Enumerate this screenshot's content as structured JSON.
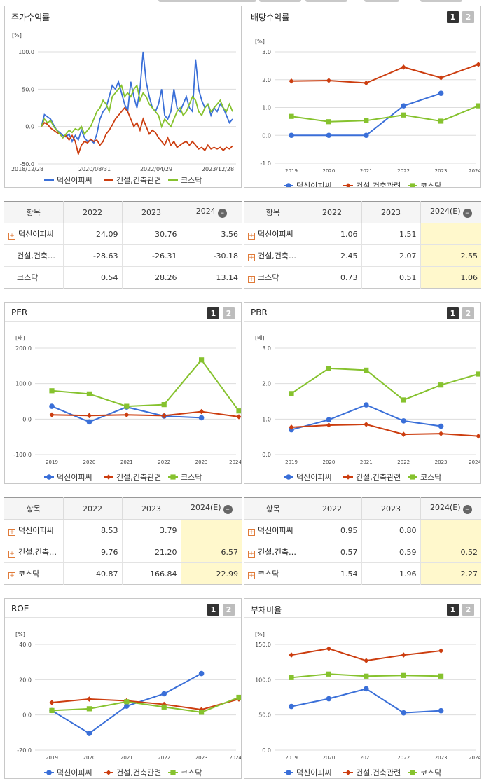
{
  "series_names": [
    "덕신이피씨",
    "건설,건축관련",
    "코스닥"
  ],
  "colors": {
    "s0": "#3a6fd8",
    "s1": "#cc3d0f",
    "s2": "#86c22e",
    "grid": "#dddddd",
    "axis": "#444444",
    "hl": "#fff8cc"
  },
  "panels": {
    "price": {
      "title": "주가수익률",
      "unit": "[%]",
      "y_ticks": [
        "100.0",
        "50.0",
        "0.0",
        "-50.0"
      ],
      "x_ticks": [
        "2018/12/28",
        "2020/08/31",
        "2022/04/29",
        "2023/12/28"
      ]
    },
    "div": {
      "title": "배당수익률",
      "unit": "[%]",
      "tab1": "1",
      "tab2": "2"
    },
    "per": {
      "title": "PER",
      "unit": "[배]",
      "tab1": "1",
      "tab2": "2"
    },
    "pbr": {
      "title": "PBR",
      "unit": "[배]",
      "tab1": "1",
      "tab2": "2"
    },
    "roe": {
      "title": "ROE",
      "unit": "[%]",
      "tab1": "1",
      "tab2": "2"
    },
    "debt": {
      "title": "부채비율",
      "unit": "[%]",
      "tab1": "1",
      "tab2": "2"
    }
  },
  "tables": {
    "price": {
      "headers": [
        "항목",
        "2022",
        "2023",
        "2024"
      ],
      "rows": [
        {
          "name": "덕신이피씨",
          "v": [
            "24.09",
            "30.76",
            "3.56"
          ]
        },
        {
          "name": "건설,건축…",
          "v": [
            "-28.63",
            "-26.31",
            "-30.18"
          ]
        },
        {
          "name": "코스닥",
          "v": [
            "0.54",
            "28.26",
            "13.14"
          ]
        }
      ]
    },
    "div": {
      "headers": [
        "항목",
        "2022",
        "2023",
        "2024(E)"
      ],
      "rows": [
        {
          "name": "덕신이피씨",
          "v": [
            "1.06",
            "1.51",
            ""
          ]
        },
        {
          "name": "건설,건축…",
          "v": [
            "2.45",
            "2.07",
            "2.55"
          ]
        },
        {
          "name": "코스닥",
          "v": [
            "0.73",
            "0.51",
            "1.06"
          ]
        }
      ]
    },
    "per": {
      "headers": [
        "항목",
        "2022",
        "2023",
        "2024(E)"
      ],
      "rows": [
        {
          "name": "덕신이피씨",
          "v": [
            "8.53",
            "3.79",
            ""
          ]
        },
        {
          "name": "건설,건축…",
          "v": [
            "9.76",
            "21.20",
            "6.57"
          ]
        },
        {
          "name": "코스닥",
          "v": [
            "40.87",
            "166.84",
            "22.99"
          ]
        }
      ]
    },
    "pbr": {
      "headers": [
        "항목",
        "2022",
        "2023",
        "2024(E)"
      ],
      "rows": [
        {
          "name": "덕신이피씨",
          "v": [
            "0.95",
            "0.80",
            ""
          ]
        },
        {
          "name": "건설,건축…",
          "v": [
            "0.57",
            "0.59",
            "0.52"
          ]
        },
        {
          "name": "코스닥",
          "v": [
            "1.54",
            "1.96",
            "2.27"
          ]
        }
      ]
    }
  },
  "chart_data": [
    {
      "type": "line",
      "title": "주가수익률",
      "ylabel": "[%]",
      "x_ticks": [
        "2018/12/28",
        "2020/08/31",
        "2022/04/29",
        "2023/12/28"
      ],
      "ylim": [
        -50,
        100
      ],
      "grid": true,
      "legend": "bottom",
      "series": [
        {
          "name": "덕신이피씨",
          "values": [
            0,
            16,
            13,
            10,
            2,
            -5,
            -8,
            -12,
            -14,
            -10,
            -20,
            -12,
            -18,
            -5,
            -15,
            -20,
            -18,
            -22,
            -10,
            10,
            20,
            25,
            40,
            55,
            50,
            60,
            45,
            30,
            20,
            60,
            40,
            25,
            50,
            100,
            60,
            40,
            25,
            20,
            30,
            50,
            15,
            10,
            20,
            50,
            25,
            20,
            30,
            40,
            25,
            20,
            90,
            50,
            35,
            25,
            30,
            15,
            25,
            20,
            30,
            25,
            15,
            5,
            10
          ]
        },
        {
          "name": "건설,건축관련",
          "values": [
            0,
            5,
            3,
            -2,
            -5,
            -8,
            -10,
            -15,
            -12,
            -18,
            -12,
            -20,
            -37,
            -25,
            -20,
            -22,
            -17,
            -20,
            -18,
            -25,
            -20,
            -10,
            -5,
            2,
            10,
            15,
            20,
            25,
            20,
            10,
            0,
            5,
            -5,
            10,
            0,
            -10,
            -5,
            -8,
            -15,
            -20,
            -25,
            -15,
            -25,
            -20,
            -28,
            -25,
            -22,
            -20,
            -25,
            -20,
            -25,
            -30,
            -28,
            -32,
            -25,
            -30,
            -28,
            -30,
            -28,
            -32,
            -28,
            -30,
            -26
          ]
        },
        {
          "name": "코스닥",
          "values": [
            0,
            10,
            5,
            8,
            0,
            -5,
            -10,
            -15,
            -10,
            -5,
            -8,
            -3,
            -5,
            0,
            -10,
            -5,
            0,
            10,
            20,
            25,
            35,
            30,
            20,
            40,
            45,
            50,
            55,
            40,
            45,
            40,
            50,
            55,
            35,
            45,
            40,
            30,
            25,
            20,
            15,
            0,
            10,
            5,
            0,
            10,
            20,
            25,
            15,
            20,
            30,
            40,
            35,
            20,
            15,
            25,
            30,
            20,
            25,
            30,
            35,
            25,
            20,
            30,
            20
          ]
        }
      ]
    },
    {
      "type": "line",
      "title": "배당수익률",
      "ylabel": "[%]",
      "categories": [
        "2019",
        "2020",
        "2021",
        "2022",
        "2023",
        "2024(E)"
      ],
      "ylim": [
        -1,
        3
      ],
      "y_ticks": [
        "3.0",
        "2.0",
        "1.0",
        "0.0",
        "-1.0"
      ],
      "grid": true,
      "legend": "bottom",
      "series": [
        {
          "name": "덕신이피씨",
          "values": [
            0,
            0,
            0,
            1.06,
            1.51,
            null
          ]
        },
        {
          "name": "건설,건축관련",
          "values": [
            1.95,
            1.97,
            1.88,
            2.45,
            2.07,
            2.55
          ]
        },
        {
          "name": "코스닥",
          "values": [
            0.68,
            0.49,
            0.53,
            0.73,
            0.51,
            1.06
          ]
        }
      ]
    },
    {
      "type": "line",
      "title": "PER",
      "ylabel": "[배]",
      "categories": [
        "2019",
        "2020",
        "2021",
        "2022",
        "2023",
        "2024(E)"
      ],
      "ylim": [
        -100,
        200
      ],
      "y_ticks": [
        "200.0",
        "100.0",
        "0.0",
        "-100.0"
      ],
      "grid": true,
      "legend": "bottom",
      "series": [
        {
          "name": "덕신이피씨",
          "values": [
            36,
            -8,
            34,
            8.53,
            3.79,
            null
          ]
        },
        {
          "name": "건설,건축관련",
          "values": [
            12,
            10,
            12,
            9.76,
            21.2,
            6.57
          ]
        },
        {
          "name": "코스닥",
          "values": [
            80,
            71,
            36,
            40.87,
            166.84,
            22.99
          ]
        }
      ]
    },
    {
      "type": "line",
      "title": "PBR",
      "ylabel": "[배]",
      "categories": [
        "2019",
        "2020",
        "2021",
        "2022",
        "2023",
        "2024(E)"
      ],
      "ylim": [
        0,
        3
      ],
      "y_ticks": [
        "3.0",
        "2.0",
        "1.0",
        "0.0"
      ],
      "grid": true,
      "legend": "bottom",
      "series": [
        {
          "name": "덕신이피씨",
          "values": [
            0.7,
            0.98,
            1.4,
            0.95,
            0.8,
            null
          ]
        },
        {
          "name": "건설,건축관련",
          "values": [
            0.77,
            0.83,
            0.85,
            0.57,
            0.59,
            0.52
          ]
        },
        {
          "name": "코스닥",
          "values": [
            1.72,
            2.43,
            2.38,
            1.54,
            1.96,
            2.27
          ]
        }
      ]
    },
    {
      "type": "line",
      "title": "ROE",
      "ylabel": "[%]",
      "categories": [
        "2019",
        "2020",
        "2021",
        "2022",
        "2023",
        "2024(E)"
      ],
      "ylim": [
        -20,
        40
      ],
      "y_ticks": [
        "40.0",
        "20.0",
        "0.0",
        "-20.0"
      ],
      "grid": true,
      "legend": "bottom",
      "series": [
        {
          "name": "덕신이피씨",
          "values": [
            2.5,
            -10.5,
            5,
            12,
            23.5,
            null
          ]
        },
        {
          "name": "건설,건축관련",
          "values": [
            7,
            9,
            8,
            6,
            3,
            9
          ]
        },
        {
          "name": "코스닥",
          "values": [
            2.5,
            3.5,
            7.5,
            4.5,
            1.5,
            10
          ]
        }
      ]
    },
    {
      "type": "line",
      "title": "부채비율",
      "ylabel": "[%]",
      "categories": [
        "2019",
        "2020",
        "2021",
        "2022",
        "2023",
        "2024(E)"
      ],
      "ylim": [
        0,
        150
      ],
      "y_ticks": [
        "150.0",
        "100.0",
        "50.0",
        "0.0"
      ],
      "grid": true,
      "legend": "bottom",
      "series": [
        {
          "name": "덕신이피씨",
          "values": [
            62,
            73,
            87,
            53,
            56,
            null
          ]
        },
        {
          "name": "건설,건축관련",
          "values": [
            135,
            144,
            127,
            135,
            141,
            null
          ]
        },
        {
          "name": "코스닥",
          "values": [
            103,
            108,
            105,
            106,
            105,
            null
          ]
        }
      ]
    }
  ]
}
